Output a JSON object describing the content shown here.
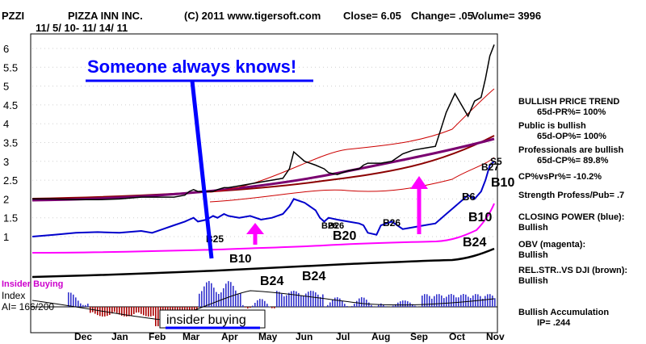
{
  "header": {
    "symbol": "PZZI",
    "company": "PIZZA INN INC.",
    "copyright": "(C) 2011 www.tigersoft.com",
    "close": "Close=  6.05",
    "change": "Change= .05",
    "volume": "Volume= 3996",
    "date_range": "11/ 5/ 10- 11/ 14/ 11"
  },
  "callout": {
    "headline": "Someone always knows!",
    "insider_label": "insider buying"
  },
  "insider": {
    "title": "Insider Buying",
    "index_label": "Index",
    "ai_label": "AI= 166/200"
  },
  "side_panel": {
    "price_trend_title": "BULLISH PRICE TREND",
    "price_trend_value": "65d-PR%= 100%",
    "public_title": "Public is bullish",
    "public_value": "65d-OP%= 100%",
    "pros_title": "Professionals are bullish",
    "pros_value": "65d-CP%= 89.8%",
    "cp_vs_pr": "CP%vsPr%= -10.2%",
    "strength": "Strength Profess/Pub= .7",
    "closing_power_title": "CLOSING POWER (blue):",
    "closing_power_value": "Bullish",
    "obv_title": "OBV (magenta):",
    "obv_value": "Bullish",
    "relstr_title": "REL.STR..VS DJI (brown):",
    "relstr_value": "Bullish",
    "accum_title": "Bullish Accumulation",
    "accum_value": "IP=  .244"
  },
  "signals": [
    {
      "label": "B25"
    },
    {
      "label": "B10"
    },
    {
      "label": "B24"
    },
    {
      "label": "B24"
    },
    {
      "label": "B20"
    },
    {
      "label": "B26"
    },
    {
      "label": "B26"
    },
    {
      "label": "B26"
    },
    {
      "label": "B6"
    },
    {
      "label": "B10"
    },
    {
      "label": "B24"
    },
    {
      "label": "B10"
    },
    {
      "label": "S5"
    },
    {
      "label": "B27"
    }
  ],
  "colors": {
    "price": "#000000",
    "ma": "#8b0000",
    "band": "#cc0000",
    "closing_power": "#0000cc",
    "obv": "#ff00ff",
    "relstr": "#000000",
    "accum_pos": "#3333cc",
    "accum_neg": "#aa0000",
    "callout_line": "#0000ff",
    "arrow": "#ff00ff",
    "insider_title": "#cc00cc"
  },
  "chart_data": {
    "type": "line",
    "title": "PIZZA INN INC.",
    "x_label": "",
    "y_label": "",
    "y_ticks": [
      "1",
      "1.5",
      "2",
      "2.5",
      "3",
      "3.5",
      "4",
      "4.5",
      "5",
      "5.5",
      "6"
    ],
    "y_range": [
      0.9,
      6.4
    ],
    "months": [
      "Dec",
      "Jan",
      "Feb",
      "Mar",
      "Apr",
      "May",
      "Jun",
      "Jul",
      "Aug",
      "Sep",
      "Oct",
      "Nov"
    ],
    "price": {
      "name": "Close",
      "x": [
        0,
        10,
        20,
        30,
        40,
        50,
        55,
        60,
        65,
        70,
        72,
        74,
        76,
        80,
        83,
        85,
        88,
        90,
        95,
        100,
        105,
        110,
        115,
        118,
        120,
        125,
        130,
        132,
        134,
        136,
        140,
        145,
        150,
        152,
        154,
        158,
        160,
        165,
        170,
        175,
        180,
        185,
        190,
        194,
        200,
        203,
        206,
        208,
        210,
        212
      ],
      "y": [
        2.0,
        2.0,
        1.98,
        1.98,
        2.0,
        2.05,
        2.05,
        2.05,
        2.05,
        2.1,
        2.2,
        2.25,
        2.2,
        2.2,
        2.2,
        2.25,
        2.3,
        2.3,
        2.35,
        2.4,
        2.45,
        2.5,
        2.55,
        2.8,
        3.25,
        3.0,
        2.9,
        2.85,
        2.8,
        2.7,
        2.65,
        2.75,
        2.8,
        2.9,
        2.95,
        2.95,
        2.95,
        3.0,
        3.2,
        3.3,
        3.35,
        3.4,
        4.3,
        4.8,
        4.2,
        4.6,
        4.7,
        5.2,
        5.8,
        6.1
      ]
    },
    "closing_power": {
      "name": "CLOSING POWER (blue)",
      "x": [
        0,
        10,
        20,
        30,
        40,
        50,
        55,
        60,
        65,
        70,
        72,
        74,
        76,
        80,
        83,
        85,
        88,
        90,
        95,
        100,
        105,
        110,
        115,
        118,
        120,
        125,
        130,
        132,
        134,
        136,
        140,
        145,
        150,
        152,
        154,
        158,
        160,
        165,
        170,
        175,
        180,
        185,
        190,
        194,
        200,
        203,
        206,
        208,
        210,
        212
      ],
      "y": [
        1.0,
        1.05,
        1.1,
        1.12,
        1.1,
        1.15,
        1.1,
        1.2,
        1.3,
        1.4,
        1.45,
        1.5,
        1.4,
        1.45,
        1.55,
        1.5,
        1.6,
        1.55,
        1.5,
        1.55,
        1.45,
        1.5,
        1.6,
        1.8,
        2.0,
        1.9,
        1.7,
        1.5,
        1.4,
        1.5,
        1.45,
        1.4,
        1.35,
        1.3,
        1.1,
        1.05,
        1.3,
        1.4,
        1.2,
        1.25,
        1.3,
        1.35,
        1.6,
        1.8,
        2.1,
        2.0,
        2.2,
        2.5,
        2.9,
        3.0
      ]
    },
    "series": [
      {
        "name": "CLOSING POWER (blue)"
      },
      {
        "name": "OBV (magenta)"
      },
      {
        "name": "REL.STR..VS DJI (brown)"
      }
    ],
    "grid": true,
    "legend": "right panel"
  }
}
